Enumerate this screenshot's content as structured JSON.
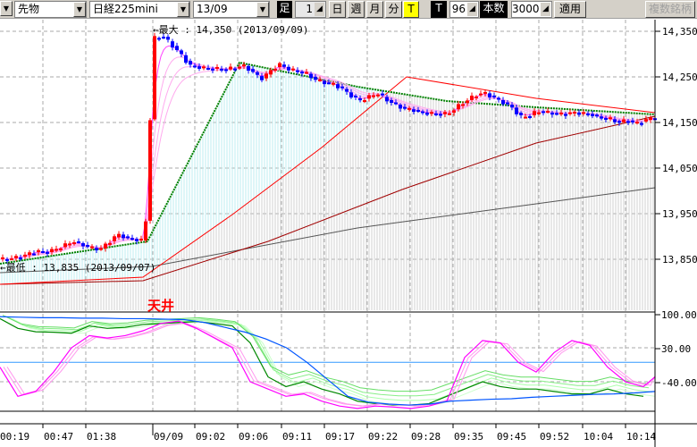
{
  "toolbar": {
    "category": "先物",
    "instrument": "日経225mini",
    "contract_month": "13/09",
    "bar_label": "足",
    "bar_count": "1",
    "period_buttons": [
      "日",
      "週",
      "月",
      "分",
      "T"
    ],
    "active_period": "T",
    "tick_label": "T",
    "tick_value": "96",
    "count_label": "本数",
    "count_value": "3000",
    "apply_label": "適用",
    "multi_label": "複数銘柄"
  },
  "price_axis": {
    "ticks": [
      "14,350",
      "14,250",
      "14,150",
      "14,050",
      "13,950",
      "13,850"
    ],
    "values": [
      14350,
      14250,
      14150,
      14050,
      13950,
      13850
    ]
  },
  "oscillator_axis": {
    "ticks": [
      "100.00",
      "30.00",
      "-40.00"
    ],
    "values": [
      100,
      30,
      -40
    ]
  },
  "time_axis": {
    "ticks": [
      "00:19",
      "00:47",
      "01:38",
      "09/09",
      "09:02",
      "09:06",
      "09:11",
      "09:17",
      "09:22",
      "09:28",
      "09:35",
      "09:45",
      "09:52",
      "10:04",
      "10:14"
    ]
  },
  "annotations": {
    "max": "←最大 : 14,350 (2013/09/09)",
    "min": "←最低 : 13,835 (2013/09/07)",
    "ceiling": "天井"
  },
  "colors": {
    "up": "#ff0000",
    "down": "#0000ff",
    "trend": "#008000",
    "ma": "#ff44ff",
    "upper_band": "#ff0000",
    "long_ma": "#a00000",
    "longest_ma": "#555555",
    "osc_blue": "#0055ff",
    "osc_zero": "#3399ff",
    "ceiling_text": "#ff0000"
  },
  "prices": [
    13850,
    13852,
    13855,
    13862,
    13868,
    13865,
    13872,
    13880,
    13890,
    13882,
    13875,
    13872,
    13888,
    13905,
    13897,
    13893,
    13890,
    14335,
    14340,
    14320,
    14300,
    14275,
    14272,
    14268,
    14268,
    14266,
    14270,
    14275,
    14262,
    14245,
    14262,
    14278,
    14268,
    14262,
    14258,
    14245,
    14238,
    14235,
    14225,
    14210,
    14198,
    14205,
    14215,
    14200,
    14190,
    14180,
    14178,
    14172,
    14170,
    14168,
    14170,
    14185,
    14198,
    14210,
    14215,
    14205,
    14195,
    14185,
    14162,
    14165,
    14175,
    14172,
    14170,
    14168,
    14172,
    14170,
    14168,
    14160,
    14158,
    14150,
    14155,
    14148,
    14155,
    14162
  ],
  "oscillator": {
    "blue": [
      94,
      93,
      92,
      92,
      91,
      91,
      90,
      90,
      89,
      88,
      82,
      72,
      62,
      48,
      30,
      0,
      -35,
      -70,
      -82,
      -86,
      -88,
      -86,
      -80,
      -78,
      -76,
      -75,
      -72,
      -70,
      -68,
      -66,
      -65,
      -63,
      -60
    ],
    "green": [
      90,
      70,
      63,
      62,
      60,
      75,
      70,
      72,
      78,
      80,
      82,
      84,
      80,
      75,
      40,
      -30,
      -50,
      -40,
      -55,
      -65,
      -80,
      -85,
      -88,
      -88,
      -85,
      -70,
      -55,
      -40,
      -50,
      -55,
      -55,
      -60,
      -65,
      -65,
      -55,
      -65,
      -70
    ],
    "magenta": [
      -10,
      -70,
      -60,
      -20,
      30,
      55,
      50,
      55,
      65,
      80,
      85,
      70,
      50,
      30,
      -40,
      -55,
      -70,
      -65,
      -80,
      -90,
      -95,
      -90,
      -92,
      -95,
      -90,
      -80,
      10,
      45,
      40,
      0,
      -20,
      20,
      45,
      35,
      -10,
      -40,
      -50,
      -30
    ]
  }
}
